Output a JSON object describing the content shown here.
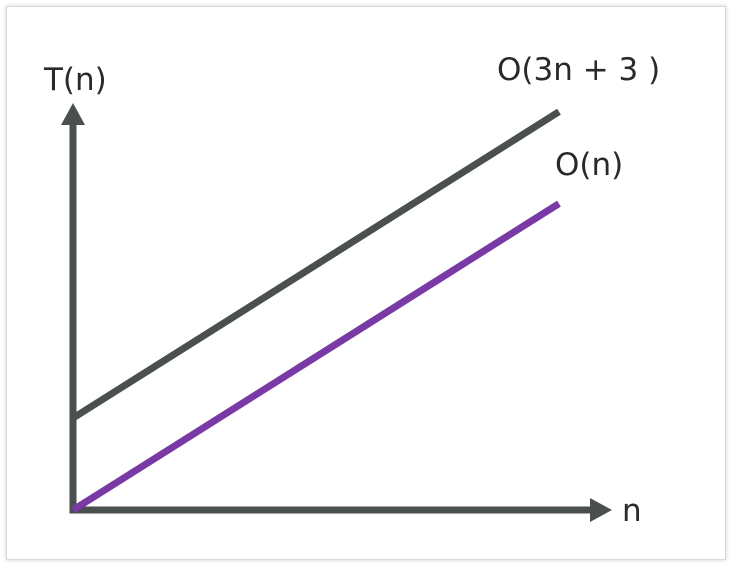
{
  "chart_data": {
    "type": "line",
    "xlabel": "n",
    "ylabel": "T(n)",
    "grid": false,
    "ticks_shown": false,
    "legend": "none",
    "series": [
      {
        "name": "O(3n + 3 )",
        "color": "#4a4f4f",
        "points": [
          [
            0,
            3
          ],
          [
            10,
            13
          ]
        ]
      },
      {
        "name": "O(n)",
        "color": "#7a3aa6",
        "points": [
          [
            0,
            0
          ],
          [
            10,
            10
          ]
        ]
      }
    ],
    "xlim": [
      0,
      11
    ],
    "ylim": [
      0,
      15
    ]
  },
  "colors": {
    "axis": "#4a4f4f",
    "text": "#2a2a2a"
  }
}
